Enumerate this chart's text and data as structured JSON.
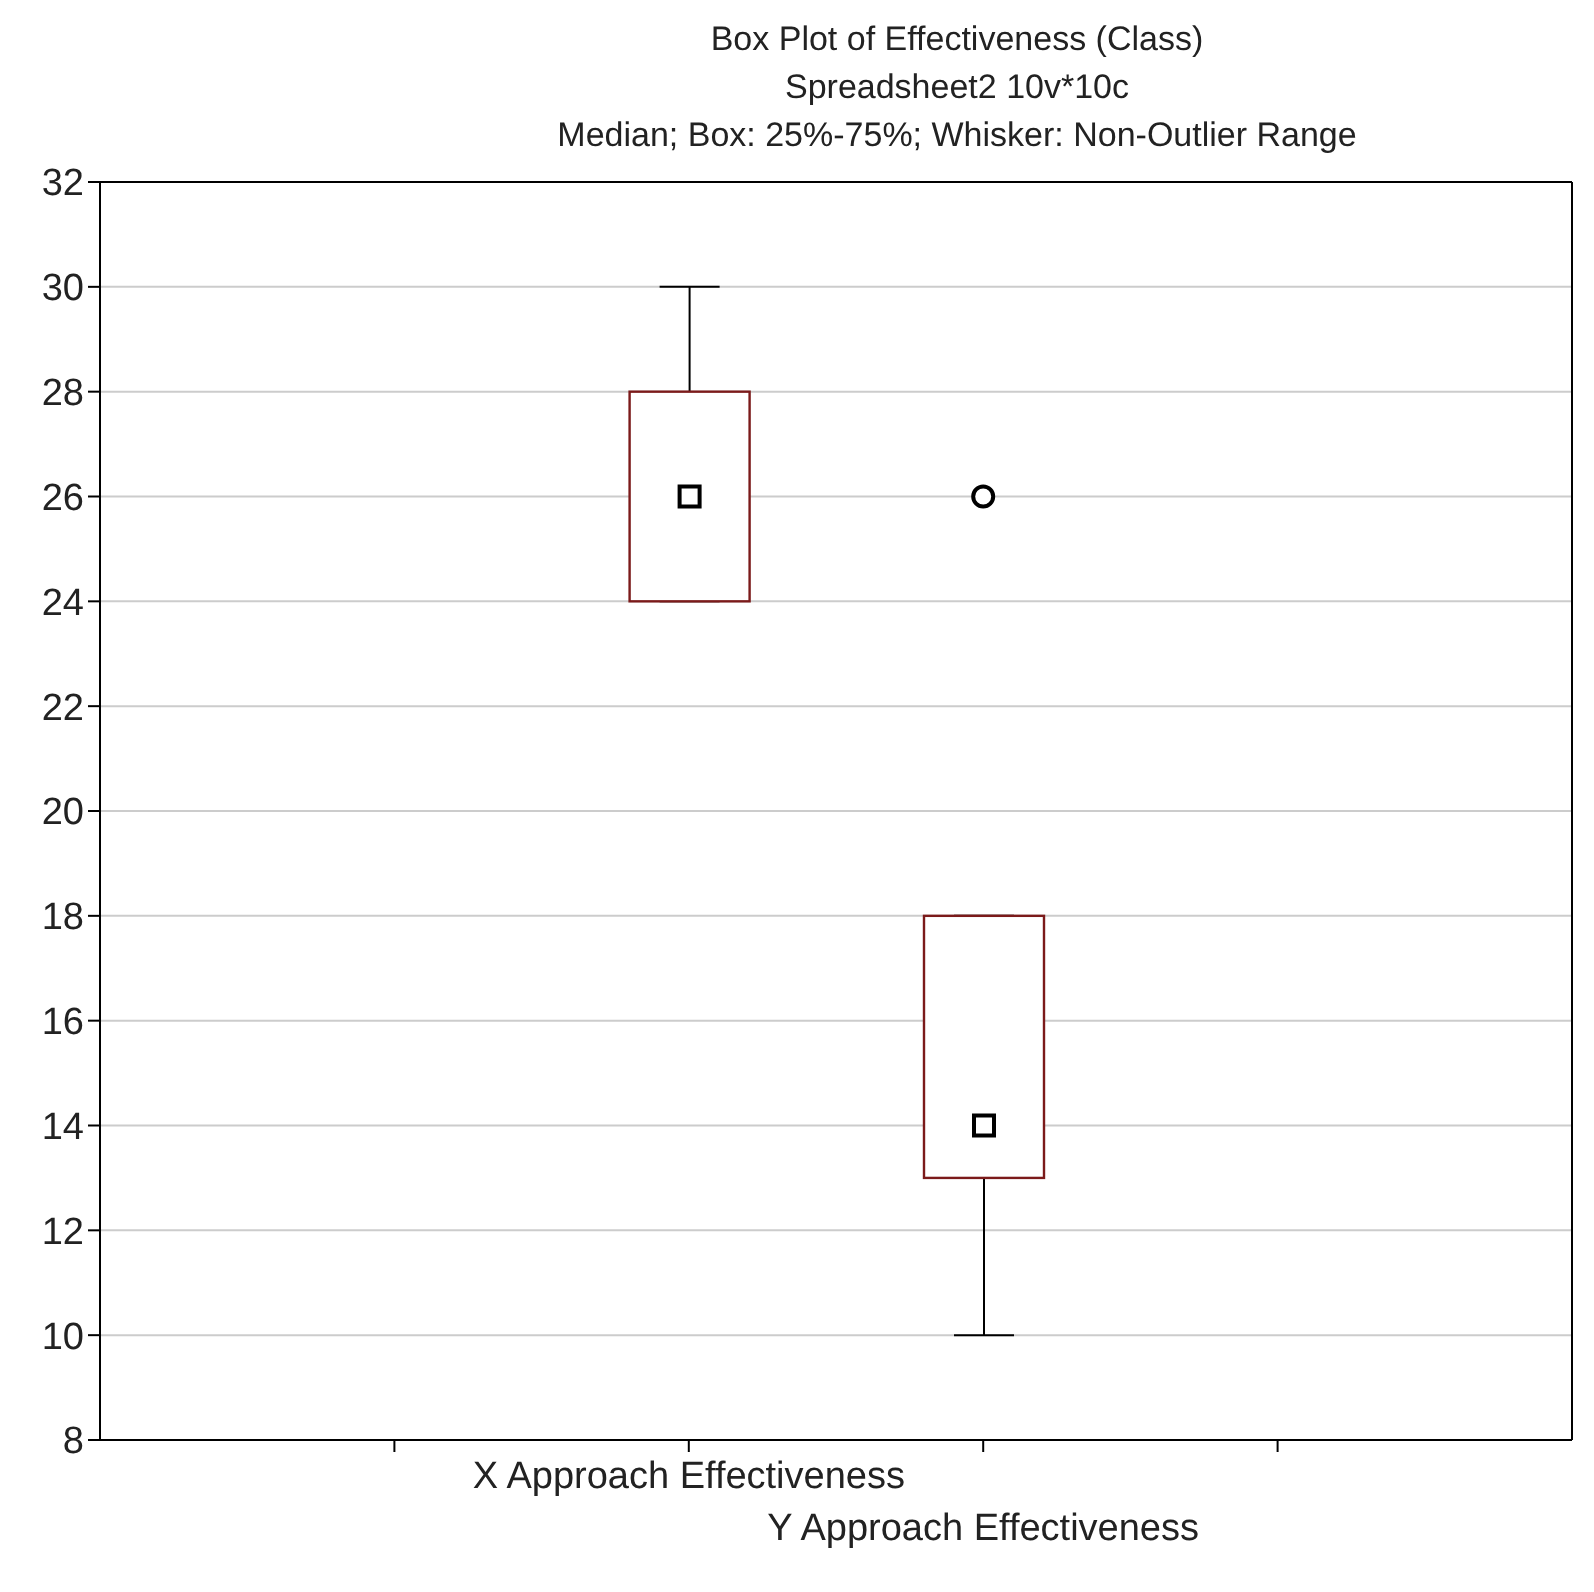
{
  "chart_data": {
    "type": "box",
    "title": "Box Plot of Effectiveness (Class)",
    "subtitle": "Spreadsheet2 10v*10c",
    "annotations": [
      "Median; Box: 25%-75%; Whisker: Non-Outlier Range"
    ],
    "categories": [
      null,
      "X Approach Effectiveness",
      "Y Approach Effectiveness",
      null
    ],
    "boxes": [
      null,
      {
        "low": 24,
        "q1": 24,
        "median": 26,
        "q3": 28,
        "high": 30
      },
      {
        "low": 10,
        "q1": 13,
        "median": 14,
        "q3": 18,
        "high": 18,
        "outliers": [
          26
        ]
      },
      null
    ],
    "color": "#7b1a1a",
    "ylim": [
      8,
      32
    ],
    "yticks": [
      8,
      10,
      12,
      14,
      16,
      18,
      20,
      22,
      24,
      26,
      28,
      30,
      32
    ],
    "grid": "y"
  }
}
